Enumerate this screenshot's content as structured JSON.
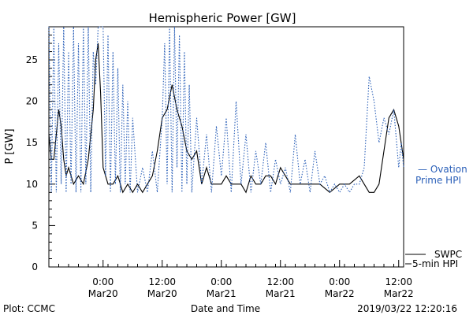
{
  "footer": {
    "plot_label": "Plot: CCMC",
    "timestamp": "2019/03/22 12:20:16"
  },
  "legend_labels": {
    "ovation_line1": "— Ovation",
    "ovation_line2": "Prime HPI",
    "swpc_line1": "SWPC",
    "swpc_line2": "5-min HPI"
  },
  "colors": {
    "swpc": "#000000",
    "ovation": "#2a5fb8"
  },
  "chart_data": {
    "type": "line",
    "title": "Hemispheric Power [GW]",
    "xlabel": "Date and Time",
    "ylabel": "P [GW]",
    "ylim": [
      0,
      29
    ],
    "y_ticks": [
      0,
      5,
      10,
      15,
      20,
      25
    ],
    "x_range": [
      "2019-03-19 13:00",
      "2019-03-22 13:00"
    ],
    "x_ticks": [
      {
        "t": "2019-03-20 00:00",
        "top": "0:00",
        "bottom": "Mar20"
      },
      {
        "t": "2019-03-20 12:00",
        "top": "12:00",
        "bottom": "Mar20"
      },
      {
        "t": "2019-03-21 00:00",
        "top": "0:00",
        "bottom": "Mar21"
      },
      {
        "t": "2019-03-21 12:00",
        "top": "12:00",
        "bottom": "Mar21"
      },
      {
        "t": "2019-03-22 00:00",
        "top": "0:00",
        "bottom": "Mar22"
      },
      {
        "t": "2019-03-22 12:00",
        "top": "12:00",
        "bottom": "Mar22"
      }
    ],
    "series": [
      {
        "name": "SWPC 5-min HPI",
        "style": "solid",
        "x": [
          "2019-03-19 13:00",
          "2019-03-19 13:30",
          "2019-03-19 14:00",
          "2019-03-19 15:00",
          "2019-03-19 15:30",
          "2019-03-19 16:00",
          "2019-03-19 16:30",
          "2019-03-19 17:00",
          "2019-03-19 18:00",
          "2019-03-19 19:00",
          "2019-03-19 20:00",
          "2019-03-19 21:00",
          "2019-03-19 22:00",
          "2019-03-19 22:30",
          "2019-03-19 23:00",
          "2019-03-19 23:30",
          "2019-03-20 00:00",
          "2019-03-20 01:00",
          "2019-03-20 02:00",
          "2019-03-20 03:00",
          "2019-03-20 04:00",
          "2019-03-20 05:00",
          "2019-03-20 06:00",
          "2019-03-20 07:00",
          "2019-03-20 08:00",
          "2019-03-20 09:00",
          "2019-03-20 10:00",
          "2019-03-20 11:00",
          "2019-03-20 12:00",
          "2019-03-20 13:00",
          "2019-03-20 14:00",
          "2019-03-20 15:00",
          "2019-03-20 16:00",
          "2019-03-20 17:00",
          "2019-03-20 18:00",
          "2019-03-20 19:00",
          "2019-03-20 20:00",
          "2019-03-20 21:00",
          "2019-03-20 22:00",
          "2019-03-20 23:00",
          "2019-03-21 00:00",
          "2019-03-21 01:00",
          "2019-03-21 02:00",
          "2019-03-21 03:00",
          "2019-03-21 04:00",
          "2019-03-21 05:00",
          "2019-03-21 06:00",
          "2019-03-21 07:00",
          "2019-03-21 08:00",
          "2019-03-21 09:00",
          "2019-03-21 10:00",
          "2019-03-21 11:00",
          "2019-03-21 12:00",
          "2019-03-21 13:00",
          "2019-03-21 14:00",
          "2019-03-21 15:00",
          "2019-03-21 16:00",
          "2019-03-21 18:00",
          "2019-03-21 20:00",
          "2019-03-21 22:00",
          "2019-03-22 00:00",
          "2019-03-22 02:00",
          "2019-03-22 04:00",
          "2019-03-22 05:00",
          "2019-03-22 06:00",
          "2019-03-22 07:00",
          "2019-03-22 08:00",
          "2019-03-22 09:00",
          "2019-03-22 10:00",
          "2019-03-22 11:00",
          "2019-03-22 12:00",
          "2019-03-22 13:00"
        ],
        "values": [
          16,
          13,
          13,
          19,
          17,
          13,
          11,
          12,
          10,
          11,
          10,
          13,
          19,
          25,
          27,
          21,
          12,
          10,
          10,
          11,
          9,
          10,
          9,
          10,
          9,
          10,
          11,
          14,
          18,
          19,
          22,
          19,
          17,
          14,
          13,
          14,
          10,
          12,
          10,
          10,
          10,
          11,
          10,
          10,
          10,
          9,
          11,
          10,
          10,
          11,
          11,
          10,
          12,
          11,
          10,
          10,
          10,
          10,
          10,
          9,
          10,
          10,
          11,
          10,
          9,
          9,
          10,
          14,
          18,
          19,
          17,
          13
        ]
      },
      {
        "name": "Ovation Prime HPI",
        "style": "dotted",
        "x": [
          "2019-03-19 13:00",
          "2019-03-19 13:30",
          "2019-03-19 14:00",
          "2019-03-19 14:30",
          "2019-03-19 15:00",
          "2019-03-19 15:30",
          "2019-03-19 16:00",
          "2019-03-19 16:30",
          "2019-03-19 17:00",
          "2019-03-19 17:30",
          "2019-03-19 18:00",
          "2019-03-19 18:30",
          "2019-03-19 19:00",
          "2019-03-19 19:30",
          "2019-03-19 20:00",
          "2019-03-19 20:30",
          "2019-03-19 21:00",
          "2019-03-19 21:30",
          "2019-03-19 22:00",
          "2019-03-19 22:30",
          "2019-03-19 23:00",
          "2019-03-19 23:30",
          "2019-03-20 00:00",
          "2019-03-20 00:30",
          "2019-03-20 01:00",
          "2019-03-20 01:30",
          "2019-03-20 02:00",
          "2019-03-20 02:30",
          "2019-03-20 03:00",
          "2019-03-20 03:30",
          "2019-03-20 04:00",
          "2019-03-20 04:30",
          "2019-03-20 05:00",
          "2019-03-20 05:30",
          "2019-03-20 06:00",
          "2019-03-20 07:00",
          "2019-03-20 08:00",
          "2019-03-20 09:00",
          "2019-03-20 10:00",
          "2019-03-20 11:00",
          "2019-03-20 12:00",
          "2019-03-20 12:30",
          "2019-03-20 13:00",
          "2019-03-20 13:30",
          "2019-03-20 14:00",
          "2019-03-20 14:30",
          "2019-03-20 15:00",
          "2019-03-20 15:30",
          "2019-03-20 16:00",
          "2019-03-20 16:30",
          "2019-03-20 17:00",
          "2019-03-20 17:30",
          "2019-03-20 18:00",
          "2019-03-20 19:00",
          "2019-03-20 20:00",
          "2019-03-20 21:00",
          "2019-03-20 22:00",
          "2019-03-20 23:00",
          "2019-03-21 00:00",
          "2019-03-21 01:00",
          "2019-03-21 02:00",
          "2019-03-21 03:00",
          "2019-03-21 04:00",
          "2019-03-21 05:00",
          "2019-03-21 06:00",
          "2019-03-21 07:00",
          "2019-03-21 08:00",
          "2019-03-21 09:00",
          "2019-03-21 10:00",
          "2019-03-21 11:00",
          "2019-03-21 12:00",
          "2019-03-21 13:00",
          "2019-03-21 14:00",
          "2019-03-21 15:00",
          "2019-03-21 16:00",
          "2019-03-21 17:00",
          "2019-03-21 18:00",
          "2019-03-21 19:00",
          "2019-03-21 20:00",
          "2019-03-21 21:00",
          "2019-03-21 22:00",
          "2019-03-21 23:00",
          "2019-03-22 00:00",
          "2019-03-22 01:00",
          "2019-03-22 02:00",
          "2019-03-22 03:00",
          "2019-03-22 04:00",
          "2019-03-22 05:00",
          "2019-03-22 06:00",
          "2019-03-22 07:00",
          "2019-03-22 08:00",
          "2019-03-22 09:00",
          "2019-03-22 10:00",
          "2019-03-22 11:00",
          "2019-03-22 12:00",
          "2019-03-22 12:30",
          "2019-03-22 13:00"
        ],
        "values": [
          29,
          9,
          29,
          9,
          27,
          10,
          29,
          9,
          26,
          10,
          29,
          9,
          27,
          9,
          29,
          10,
          29,
          9,
          26,
          22,
          29,
          29,
          29,
          11,
          28,
          9,
          26,
          10,
          24,
          9,
          22,
          10,
          20,
          9,
          18,
          9,
          12,
          9,
          14,
          9,
          18,
          27,
          10,
          29,
          9,
          29,
          12,
          28,
          9,
          26,
          10,
          22,
          9,
          18,
          10,
          16,
          9,
          17,
          11,
          18,
          9,
          20,
          10,
          16,
          9,
          14,
          10,
          15,
          9,
          13,
          10,
          12,
          9,
          16,
          10,
          13,
          9,
          14,
          10,
          11,
          9,
          10,
          9,
          10,
          9,
          10,
          10,
          12,
          23,
          20,
          15,
          18,
          16,
          19,
          12,
          15,
          12
        ]
      }
    ]
  }
}
